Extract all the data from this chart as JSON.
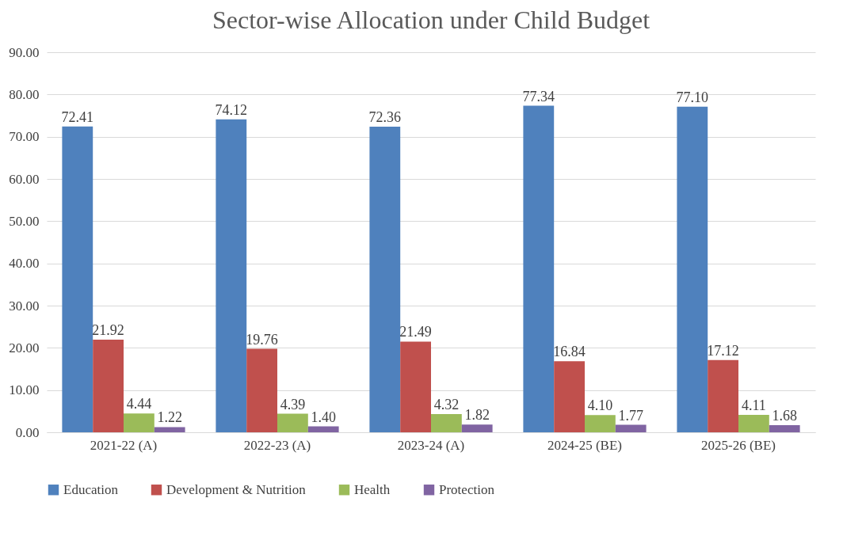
{
  "chart_data": {
    "type": "bar",
    "title": "Sector-wise Allocation under Child Budget",
    "categories": [
      "2021-22 (A)",
      "2022-23 (A)",
      "2023-24 (A)",
      "2024-25 (BE)",
      "2025-26 (BE)"
    ],
    "series": [
      {
        "name": "Education",
        "color": "#4f81bd",
        "values": [
          72.41,
          74.12,
          72.36,
          77.34,
          77.1
        ],
        "value_labels": [
          "72.41",
          "74.12",
          "72.36",
          "77.34",
          "77.10"
        ]
      },
      {
        "name": "Development & Nutrition",
        "color": "#c0504d",
        "values": [
          21.92,
          19.76,
          21.49,
          16.84,
          17.12
        ],
        "value_labels": [
          "21.92",
          "19.76",
          "21.49",
          "16.84",
          "17.12"
        ]
      },
      {
        "name": "Health",
        "color": "#9bbb59",
        "values": [
          4.44,
          4.39,
          4.32,
          4.1,
          4.11
        ],
        "value_labels": [
          "4.44",
          "4.39",
          "4.32",
          "4.10",
          "4.11"
        ]
      },
      {
        "name": "Protection",
        "color": "#8064a2",
        "values": [
          1.22,
          1.4,
          1.82,
          1.77,
          1.68
        ],
        "value_labels": [
          "1.22",
          "1.40",
          "1.82",
          "1.77",
          "1.68"
        ]
      }
    ],
    "ylim": [
      0,
      90
    ],
    "yticks": [
      {
        "value": 0,
        "label": "0.00"
      },
      {
        "value": 10,
        "label": "10.00"
      },
      {
        "value": 20,
        "label": "20.00"
      },
      {
        "value": 30,
        "label": "30.00"
      },
      {
        "value": 40,
        "label": "40.00"
      },
      {
        "value": 50,
        "label": "50.00"
      },
      {
        "value": 60,
        "label": "60.00"
      },
      {
        "value": 70,
        "label": "70.00"
      },
      {
        "value": 80,
        "label": "80.00"
      },
      {
        "value": 90,
        "label": "90.00"
      }
    ],
    "grid": "y",
    "legend": "bottom"
  }
}
